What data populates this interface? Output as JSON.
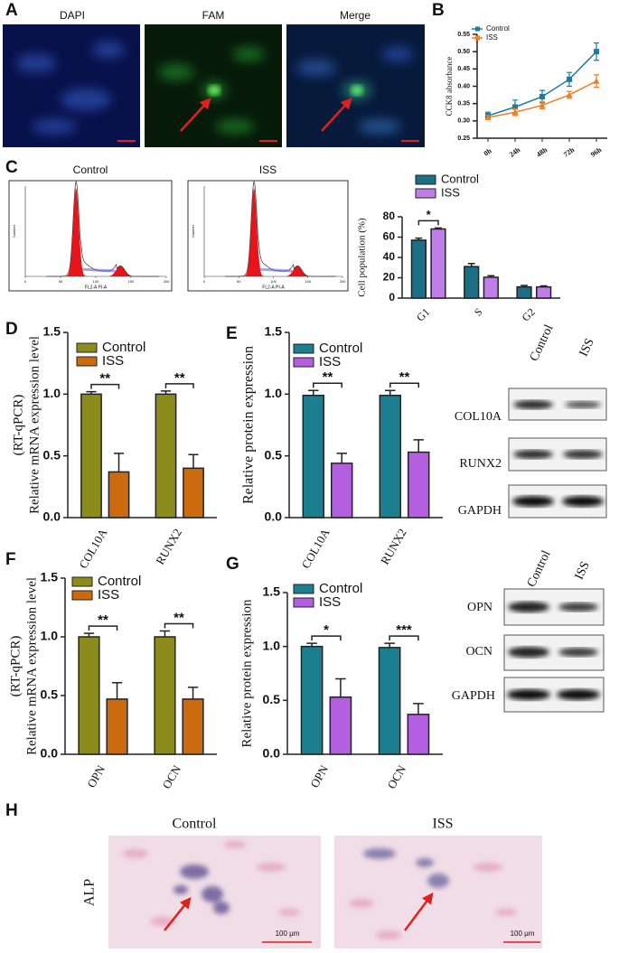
{
  "figure": {
    "panel_letters": [
      "A",
      "B",
      "C",
      "D",
      "E",
      "F",
      "G",
      "H"
    ],
    "a_labels": [
      "DAPI",
      "FAM",
      "Merge"
    ],
    "blots_e": {
      "columns": [
        "Control",
        "ISS"
      ],
      "rows": [
        "COL10A",
        "RUNX2",
        "GAPDH"
      ]
    },
    "blots_g": {
      "columns": [
        "Control",
        "ISS"
      ],
      "rows": [
        "OPN",
        "OCN",
        "GAPDH"
      ]
    },
    "h_labels": {
      "columns": [
        "Control",
        "ISS"
      ],
      "stain": "ALP",
      "scale_bar": "100 μm"
    }
  },
  "chart_data": [
    {
      "type": "line",
      "ylabel": "CCK8 absorbance",
      "categories": [
        "0h",
        "24h",
        "48h",
        "72h",
        "96h"
      ],
      "ylim": [
        0.25,
        0.55
      ],
      "yticks": [
        0.25,
        {
          "value": 0.3,
          "label": "0.30"
        },
        0.35,
        {
          "value": 0.4,
          "label": "0.40"
        },
        0.45,
        {
          "value": 0.5,
          "label": "0.50"
        },
        0.55
      ],
      "series": [
        {
          "name": "Control",
          "color": "#1f7a9c",
          "marker": "square",
          "values": [
            0.315,
            0.34,
            0.37,
            0.42,
            0.5
          ],
          "errors": [
            0.01,
            0.02,
            0.018,
            0.02,
            0.025
          ]
        },
        {
          "name": "ISS",
          "color": "#f07e22",
          "marker": "triangle",
          "values": [
            0.31,
            0.325,
            0.345,
            0.375,
            0.415
          ],
          "errors": [
            0.006,
            0.01,
            0.01,
            0.01,
            0.018
          ]
        }
      ]
    },
    {
      "type": "flow",
      "title": "Control",
      "xlabel": "FL2-A PI-A",
      "ylabel": "Number",
      "xlim": [
        0,
        200
      ],
      "xticks": [
        0,
        50,
        100,
        150,
        200
      ]
    },
    {
      "type": "flow",
      "title": "ISS",
      "xlabel": "FL2-A PI-A",
      "ylabel": "Number",
      "xlim": [
        0,
        200
      ],
      "xticks": [
        0,
        50,
        100,
        150,
        200
      ]
    },
    {
      "type": "bar",
      "ylabel": "Cell population (%)",
      "categories": [
        "G1",
        "S",
        "G2"
      ],
      "ylim": [
        0,
        80
      ],
      "yticks": [
        0,
        20,
        40,
        60,
        80
      ],
      "significance": [
        "*",
        null,
        null
      ],
      "series": [
        {
          "name": "Control",
          "color": "#1d6f85",
          "values": [
            57,
            31,
            11
          ],
          "errors": [
            2,
            3,
            1.5
          ]
        },
        {
          "name": "ISS",
          "color": "#c27ee8",
          "values": [
            68,
            20.5,
            11
          ],
          "errors": [
            1,
            1.5,
            1
          ]
        }
      ]
    },
    {
      "type": "bar",
      "ylabel": [
        "Relative mRNA expression level",
        "(RT-qPCR)"
      ],
      "categories": [
        "COL10A",
        "RUNX2"
      ],
      "ylim": [
        0,
        1.5
      ],
      "yticks": [
        {
          "value": 0,
          "label": "0.0"
        },
        0.5,
        {
          "value": 1,
          "label": "1.0"
        },
        1.5
      ],
      "significance": [
        "**",
        "**"
      ],
      "series": [
        {
          "name": "Control",
          "color": "#8c8c1c",
          "values": [
            1.0,
            1.0
          ],
          "errors": [
            0.02,
            0.025
          ]
        },
        {
          "name": "ISS",
          "color": "#cc6a10",
          "values": [
            0.37,
            0.4
          ],
          "errors": [
            0.15,
            0.11
          ]
        }
      ]
    },
    {
      "type": "bar",
      "ylabel": "Relative protein expression",
      "categories": [
        "COL10A",
        "RUNX2"
      ],
      "ylim": [
        0,
        1.5
      ],
      "yticks": [
        {
          "value": 0,
          "label": "0.0"
        },
        0.5,
        {
          "value": 1,
          "label": "1.0"
        },
        1.5
      ],
      "significance": [
        "**",
        "**"
      ],
      "series": [
        {
          "name": "Control",
          "color": "#1b7f8f",
          "values": [
            0.99,
            0.99
          ],
          "errors": [
            0.04,
            0.04
          ]
        },
        {
          "name": "ISS",
          "color": "#b45ee0",
          "values": [
            0.44,
            0.53
          ],
          "errors": [
            0.08,
            0.1
          ]
        }
      ]
    },
    {
      "type": "bar",
      "ylabel": [
        "Relative mRNA expression level",
        "(RT-qPCR)"
      ],
      "categories": [
        "OPN",
        "OCN"
      ],
      "ylim": [
        0,
        1.5
      ],
      "yticks": [
        {
          "value": 0,
          "label": "0.0"
        },
        0.5,
        {
          "value": 1,
          "label": "1.0"
        },
        1.5
      ],
      "significance": [
        "**",
        "**"
      ],
      "series": [
        {
          "name": "Control",
          "color": "#8c8c1c",
          "values": [
            1.0,
            1.0
          ],
          "errors": [
            0.03,
            0.05
          ]
        },
        {
          "name": "ISS",
          "color": "#cc6a10",
          "values": [
            0.47,
            0.47
          ],
          "errors": [
            0.14,
            0.1
          ]
        }
      ]
    },
    {
      "type": "bar",
      "ylabel": "Relative protein expression",
      "categories": [
        "OPN",
        "OCN"
      ],
      "ylim": [
        0,
        1.5
      ],
      "yticks": [
        {
          "value": 0,
          "label": "0.0"
        },
        0.5,
        {
          "value": 1,
          "label": "1.0"
        },
        1.5
      ],
      "significance": [
        "*",
        "***"
      ],
      "series": [
        {
          "name": "Control",
          "color": "#1b7f8f",
          "values": [
            1.0,
            0.99
          ],
          "errors": [
            0.03,
            0.04
          ]
        },
        {
          "name": "ISS",
          "color": "#b45ee0",
          "values": [
            0.53,
            0.37
          ],
          "errors": [
            0.17,
            0.1
          ]
        }
      ]
    }
  ]
}
